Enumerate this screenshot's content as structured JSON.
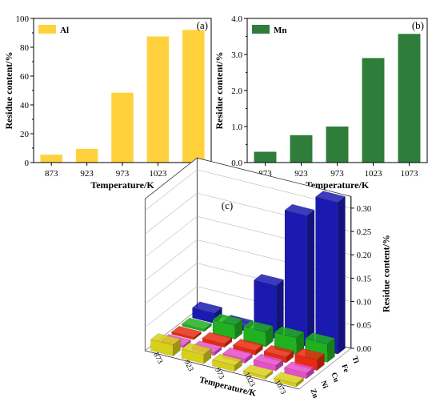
{
  "chart_data": [
    {
      "panel": "(a)",
      "type": "bar",
      "categories": [
        "873",
        "923",
        "973",
        "1023",
        "1073"
      ],
      "series": [
        {
          "name": "Al",
          "values": [
            5.5,
            9.5,
            48.5,
            87.5,
            92
          ]
        }
      ],
      "xlabel": "Temperature/K",
      "ylabel": "Residue content/%",
      "ylim": [
        0,
        100
      ],
      "yticks": [
        "0",
        "20",
        "40",
        "60",
        "80",
        "100"
      ],
      "color": "#FFD23D",
      "legend_position": "top-left"
    },
    {
      "panel": "(b)",
      "type": "bar",
      "categories": [
        "873",
        "923",
        "973",
        "1023",
        "1073"
      ],
      "series": [
        {
          "name": "Mn",
          "values": [
            0.3,
            0.76,
            1.0,
            2.9,
            3.57
          ]
        }
      ],
      "xlabel": "Temperature/K",
      "ylabel": "Residue content/%",
      "ylim": [
        0,
        4
      ],
      "yticks": [
        "0.0",
        "1.0",
        "2.0",
        "3.0",
        "4.0"
      ],
      "color": "#2E7D3A",
      "legend_position": "top-left"
    },
    {
      "panel": "(c)",
      "type": "bar3d",
      "categories": [
        "873",
        "923",
        "973",
        "1023",
        "1073"
      ],
      "series": [
        {
          "name": "Zn",
          "color": "#D8CF1A",
          "values": [
            0.024,
            0.02,
            0.013,
            0.006,
            0.007
          ]
        },
        {
          "name": "Ni",
          "color": "#E64FC8",
          "values": [
            0.005,
            0.007,
            0.009,
            0.012,
            0.012
          ]
        },
        {
          "name": "Cu",
          "color": "#E82A10",
          "values": [
            0.005,
            0.008,
            0.01,
            0.013,
            0.023
          ]
        },
        {
          "name": "Fe",
          "color": "#20B020",
          "values": [
            0.005,
            0.03,
            0.032,
            0.036,
            0.039
          ]
        },
        {
          "name": "Ti",
          "color": "#1A1AB0",
          "values": [
            0.022,
            0.01,
            0.114,
            0.28,
            0.325
          ]
        }
      ],
      "xlabel": "Temperature/K",
      "zlabel": "Residue content/%",
      "zlim": [
        0,
        0.3
      ],
      "zticks": [
        "0.00",
        "0.05",
        "0.10",
        "0.15",
        "0.20",
        "0.25",
        "0.30"
      ]
    }
  ]
}
